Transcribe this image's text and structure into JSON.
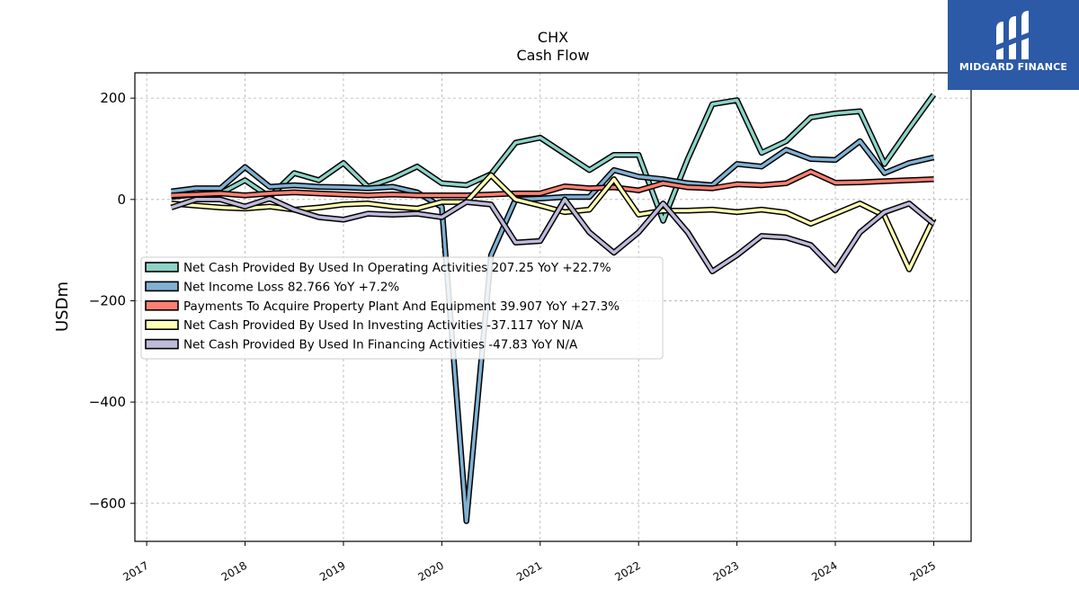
{
  "chart_data": {
    "type": "line",
    "title": "CHX",
    "subtitle": "Cash Flow",
    "xlabel": "",
    "ylabel": "USDm",
    "xlim": [
      2016.88,
      2025.38
    ],
    "ylim": [
      -675,
      250
    ],
    "x_ticks": [
      2017,
      2018,
      2019,
      2020,
      2021,
      2022,
      2023,
      2024,
      2025
    ],
    "y_ticks": [
      -600,
      -400,
      -200,
      0,
      200
    ],
    "grid": true,
    "legend_position": "center-left",
    "series": [
      {
        "name": "Net Cash Provided By Used In Operating Activities  207.25 YoY +22.7%",
        "color": "#8dd3c7",
        "x": [
          2017.25,
          2017.5,
          2017.75,
          2018.0,
          2018.25,
          2018.5,
          2018.75,
          2019.0,
          2019.25,
          2019.5,
          2019.75,
          2020.0,
          2020.25,
          2020.5,
          2020.75,
          2021.0,
          2021.25,
          2021.5,
          2021.75,
          2022.0,
          2022.25,
          2022.5,
          2022.75,
          2023.0,
          2023.25,
          2023.5,
          2023.75,
          2024.0,
          2024.25,
          2024.5,
          2024.75,
          2025.0
        ],
        "y": [
          5,
          10,
          12,
          38,
          5,
          52,
          38,
          72,
          25,
          42,
          65,
          32,
          28,
          50,
          112,
          122,
          90,
          58,
          88,
          88,
          -42,
          80,
          188,
          196,
          92,
          115,
          162,
          170,
          174,
          70,
          140,
          207
        ]
      },
      {
        "name": "Net Income Loss  82.766 YoY +7.2%",
        "color": "#80b1d3",
        "x": [
          2017.25,
          2017.5,
          2017.75,
          2018.0,
          2018.25,
          2018.5,
          2018.75,
          2019.0,
          2019.25,
          2019.5,
          2019.75,
          2020.0,
          2020.25,
          2020.5,
          2020.75,
          2021.0,
          2021.25,
          2021.5,
          2021.75,
          2022.0,
          2022.25,
          2022.5,
          2022.75,
          2023.0,
          2023.25,
          2023.5,
          2023.75,
          2024.0,
          2024.25,
          2024.5,
          2024.75,
          2025.0
        ],
        "y": [
          16,
          22,
          22,
          64,
          25,
          28,
          25,
          24,
          22,
          25,
          14,
          -15,
          -635,
          -110,
          0,
          2,
          5,
          5,
          58,
          45,
          40,
          32,
          28,
          70,
          65,
          98,
          80,
          78,
          115,
          52,
          72,
          83
        ]
      },
      {
        "name": "Payments To Acquire Property Plant And Equipment  39.907 YoY +27.3%",
        "color": "#fb8072",
        "x": [
          2017.25,
          2017.5,
          2017.75,
          2018.0,
          2018.25,
          2018.5,
          2018.75,
          2019.0,
          2019.25,
          2019.5,
          2019.75,
          2020.0,
          2020.25,
          2020.5,
          2020.75,
          2021.0,
          2021.25,
          2021.5,
          2021.75,
          2022.0,
          2022.25,
          2022.5,
          2022.75,
          2023.0,
          2023.25,
          2023.5,
          2023.75,
          2024.0,
          2024.25,
          2024.5,
          2024.75,
          2025.0
        ],
        "y": [
          8,
          10,
          12,
          8,
          12,
          14,
          12,
          10,
          8,
          10,
          8,
          8,
          8,
          10,
          12,
          12,
          26,
          22,
          24,
          18,
          32,
          24,
          22,
          30,
          28,
          32,
          55,
          33,
          34,
          36,
          38,
          40
        ]
      },
      {
        "name": "Net Cash Provided By Used In Investing Activities  -37.117 YoY N/A",
        "color": "#ffffb3",
        "x": [
          2017.25,
          2017.5,
          2017.75,
          2018.0,
          2018.25,
          2018.5,
          2018.75,
          2019.0,
          2019.25,
          2019.5,
          2019.75,
          2020.0,
          2020.25,
          2020.5,
          2020.75,
          2021.0,
          2021.25,
          2021.5,
          2021.75,
          2022.0,
          2022.25,
          2022.5,
          2022.75,
          2023.0,
          2023.25,
          2023.5,
          2023.75,
          2024.0,
          2024.25,
          2024.5,
          2024.75,
          2025.0
        ],
        "y": [
          -8,
          -12,
          -16,
          -18,
          -14,
          -20,
          -16,
          -10,
          -8,
          -14,
          -18,
          -5,
          -5,
          48,
          0,
          -12,
          -25,
          -20,
          40,
          -30,
          -22,
          -22,
          -20,
          -25,
          -20,
          -26,
          -48,
          -28,
          -8,
          -32,
          -138,
          -37
        ]
      },
      {
        "name": "Net Cash Provided By Used In Financing Activities  -47.83 YoY N/A",
        "color": "#bebada",
        "x": [
          2017.25,
          2017.5,
          2017.75,
          2018.0,
          2018.25,
          2018.5,
          2018.75,
          2019.0,
          2019.25,
          2019.5,
          2019.75,
          2020.0,
          2020.25,
          2020.5,
          2020.75,
          2021.0,
          2021.25,
          2021.5,
          2021.75,
          2022.0,
          2022.25,
          2022.5,
          2022.75,
          2023.0,
          2023.25,
          2023.5,
          2023.75,
          2024.0,
          2024.25,
          2024.5,
          2024.75,
          2025.0
        ],
        "y": [
          -16,
          0,
          0,
          -14,
          2,
          -20,
          -35,
          -40,
          -28,
          -30,
          -28,
          -35,
          -5,
          -10,
          -85,
          -82,
          0,
          -65,
          -105,
          -65,
          -8,
          -65,
          -142,
          -110,
          -72,
          -75,
          -90,
          -140,
          -65,
          -25,
          -8,
          -48
        ]
      }
    ]
  },
  "logo": {
    "text": "MIDGARD FINANCE",
    "background": "#2c5aa6"
  }
}
